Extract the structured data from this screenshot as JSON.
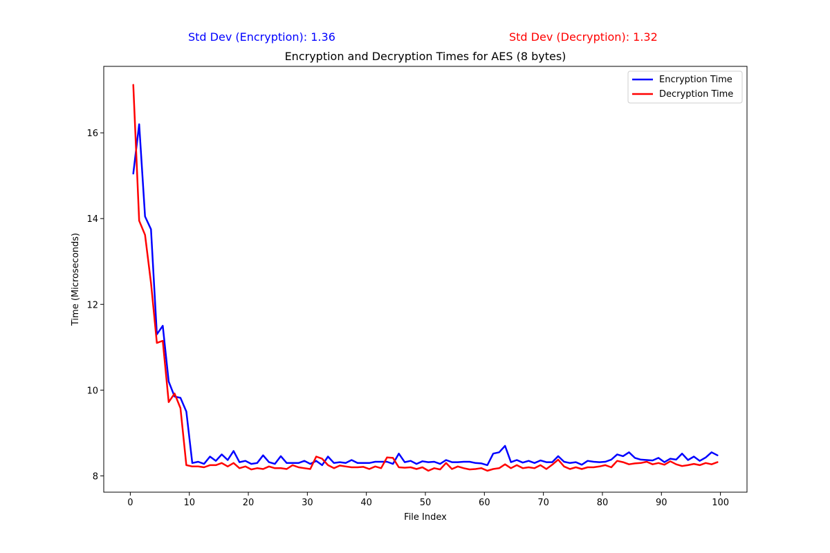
{
  "std_labels": {
    "encryption": "Std Dev (Encryption): 1.36",
    "decryption": "Std Dev (Decryption): 1.32"
  },
  "chart_data": {
    "type": "line",
    "title": "Encryption and Decryption Times for AES (8 bytes)",
    "xlabel": "File Index",
    "ylabel": "Time (Microseconds)",
    "xlim": [
      -4.5,
      104.5
    ],
    "ylim": [
      7.62,
      17.55
    ],
    "xticks": [
      0,
      10,
      20,
      30,
      40,
      50,
      60,
      70,
      80,
      90,
      100
    ],
    "yticks": [
      8,
      10,
      12,
      14,
      16
    ],
    "grid": false,
    "legend_position": "top-right",
    "x": [
      0.5,
      1.5,
      2.5,
      3.5,
      4.5,
      5.5,
      6.5,
      7.5,
      8.5,
      9.5,
      10.5,
      11.5,
      12.5,
      13.5,
      14.5,
      15.5,
      16.5,
      17.5,
      18.5,
      19.5,
      20.5,
      21.5,
      22.5,
      23.5,
      24.5,
      25.5,
      26.5,
      27.5,
      28.5,
      29.5,
      30.5,
      31.5,
      32.5,
      33.5,
      34.5,
      35.5,
      36.5,
      37.5,
      38.5,
      39.5,
      40.5,
      41.5,
      42.5,
      43.5,
      44.5,
      45.5,
      46.5,
      47.5,
      48.5,
      49.5,
      50.5,
      51.5,
      52.5,
      53.5,
      54.5,
      55.5,
      56.5,
      57.5,
      58.5,
      59.5,
      60.5,
      61.5,
      62.5,
      63.5,
      64.5,
      65.5,
      66.5,
      67.5,
      68.5,
      69.5,
      70.5,
      71.5,
      72.5,
      73.5,
      74.5,
      75.5,
      76.5,
      77.5,
      78.5,
      79.5,
      80.5,
      81.5,
      82.5,
      83.5,
      84.5,
      85.5,
      86.5,
      87.5,
      88.5,
      89.5,
      90.5,
      91.5,
      92.5,
      93.5,
      94.5,
      95.5,
      96.5,
      97.5,
      98.5,
      99.5
    ],
    "series": [
      {
        "name": "Encryption Time",
        "color": "#0000ff",
        "values": [
          15.05,
          16.2,
          14.05,
          13.75,
          11.3,
          11.5,
          10.2,
          9.85,
          9.82,
          9.5,
          8.3,
          8.33,
          8.28,
          8.45,
          8.35,
          8.5,
          8.37,
          8.58,
          8.32,
          8.35,
          8.28,
          8.3,
          8.48,
          8.32,
          8.28,
          8.46,
          8.3,
          8.3,
          8.3,
          8.35,
          8.28,
          8.35,
          8.25,
          8.45,
          8.3,
          8.32,
          8.3,
          8.37,
          8.3,
          8.3,
          8.3,
          8.33,
          8.33,
          8.33,
          8.28,
          8.52,
          8.32,
          8.35,
          8.28,
          8.34,
          8.32,
          8.33,
          8.28,
          8.37,
          8.32,
          8.32,
          8.33,
          8.33,
          8.3,
          8.29,
          8.25,
          8.52,
          8.55,
          8.7,
          8.32,
          8.37,
          8.31,
          8.35,
          8.3,
          8.36,
          8.32,
          8.32,
          8.46,
          8.33,
          8.3,
          8.32,
          8.26,
          8.35,
          8.33,
          8.32,
          8.33,
          8.38,
          8.5,
          8.46,
          8.55,
          8.42,
          8.38,
          8.37,
          8.36,
          8.42,
          8.32,
          8.4,
          8.38,
          8.52,
          8.37,
          8.45,
          8.35,
          8.43,
          8.55,
          8.48
        ]
      },
      {
        "name": "Decryption Time",
        "color": "#ff0000",
        "values": [
          17.12,
          13.95,
          13.62,
          12.5,
          11.1,
          11.15,
          9.72,
          9.92,
          9.58,
          8.25,
          8.22,
          8.22,
          8.2,
          8.25,
          8.25,
          8.3,
          8.22,
          8.3,
          8.18,
          8.22,
          8.15,
          8.18,
          8.16,
          8.22,
          8.18,
          8.18,
          8.16,
          8.25,
          8.2,
          8.18,
          8.16,
          8.45,
          8.4,
          8.25,
          8.18,
          8.24,
          8.22,
          8.2,
          8.2,
          8.21,
          8.16,
          8.22,
          8.18,
          8.43,
          8.42,
          8.2,
          8.19,
          8.2,
          8.16,
          8.2,
          8.12,
          8.18,
          8.15,
          8.3,
          8.16,
          8.22,
          8.18,
          8.15,
          8.16,
          8.18,
          8.12,
          8.16,
          8.18,
          8.27,
          8.18,
          8.25,
          8.18,
          8.2,
          8.18,
          8.25,
          8.16,
          8.26,
          8.38,
          8.22,
          8.16,
          8.2,
          8.16,
          8.2,
          8.2,
          8.22,
          8.25,
          8.2,
          8.35,
          8.32,
          8.27,
          8.29,
          8.3,
          8.33,
          8.27,
          8.3,
          8.26,
          8.34,
          8.27,
          8.23,
          8.25,
          8.28,
          8.25,
          8.3,
          8.27,
          8.32
        ]
      }
    ]
  }
}
